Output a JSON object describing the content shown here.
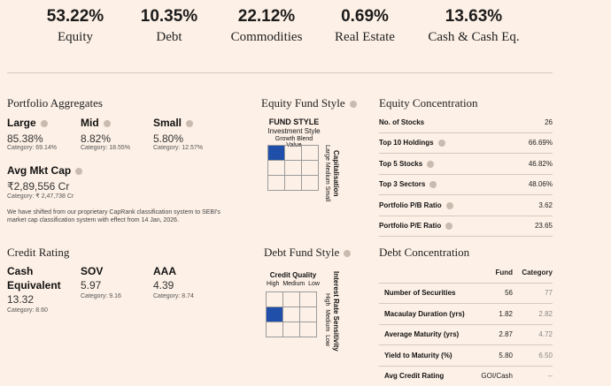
{
  "allocation": [
    {
      "pct": "53.22%",
      "label": "Equity"
    },
    {
      "pct": "10.35%",
      "label": "Debt"
    },
    {
      "pct": "22.12%",
      "label": "Commodities"
    },
    {
      "pct": "0.69%",
      "label": "Real Estate"
    },
    {
      "pct": "13.63%",
      "label": "Cash & Cash Eq."
    }
  ],
  "portfolio_aggregates": {
    "title": "Portfolio Aggregates",
    "large": {
      "label": "Large",
      "value": "85.38%",
      "category": "Category: 69.14%"
    },
    "mid": {
      "label": "Mid",
      "value": "8.82%",
      "category": "Category: 18.55%"
    },
    "small": {
      "label": "Small",
      "value": "5.80%",
      "category": "Category: 12.57%"
    },
    "avg_mkt_cap": {
      "label": "Avg Mkt Cap",
      "value": "₹2,89,556 Cr",
      "category": "Category: ₹ 2,47,738 Cr"
    },
    "note": "We have shifted from our proprietary CapRank classification system to SEBI's market cap classification system with effect from 14 Jan, 2026."
  },
  "equity_fund_style": {
    "title": "Equity Fund Style",
    "box_title": "FUND STYLE",
    "box_subtitle": "Investment Style",
    "columns": "Growth Blend Value",
    "side": "Capitalisation",
    "rows": "Large Medium Small"
  },
  "equity_concentration": {
    "title": "Equity Concentration",
    "rows": [
      {
        "label": "No. of Stocks",
        "value": "26"
      },
      {
        "label": "Top 10 Holdings",
        "value": "66.69%"
      },
      {
        "label": "Top 5 Stocks",
        "value": "46.82%"
      },
      {
        "label": "Top 3 Sectors",
        "value": "48.06%"
      },
      {
        "label": "Portfolio P/B Ratio",
        "value": "3.62"
      },
      {
        "label": "Portfolio P/E Ratio",
        "value": "23.65"
      }
    ]
  },
  "credit_rating": {
    "title": "Credit Rating",
    "cash": {
      "label1": "Cash",
      "label2": "Equivalent",
      "value": "13.32",
      "category": "Category: 8.60"
    },
    "sov": {
      "label": "SOV",
      "value": "5.97",
      "category": "Category: 9.16"
    },
    "aaa": {
      "label": "AAA",
      "value": "4.39",
      "category": "Category: 8.74"
    }
  },
  "debt_fund_style": {
    "title": "Debt Fund Style",
    "box_title": "Credit Quality",
    "columns": "High  Medium  Low",
    "side": "Interest Rate Sensitivity",
    "rows": "High  Medium  Low"
  },
  "debt_concentration": {
    "title": "Debt Concentration",
    "header_fund": "Fund",
    "header_category": "Category",
    "rows": [
      {
        "label": "Number of Securities",
        "fund": "56",
        "category": "77"
      },
      {
        "label": "Macaulay Duration (yrs)",
        "fund": "1.82",
        "category": "2.82"
      },
      {
        "label": "Average Maturity (yrs)",
        "fund": "2.87",
        "category": "4.72"
      },
      {
        "label": "Yield to Maturity (%)",
        "fund": "5.80",
        "category": "6.50"
      },
      {
        "label": "Avg Credit Rating",
        "fund": "GOI/Cash",
        "category": "--"
      }
    ]
  }
}
